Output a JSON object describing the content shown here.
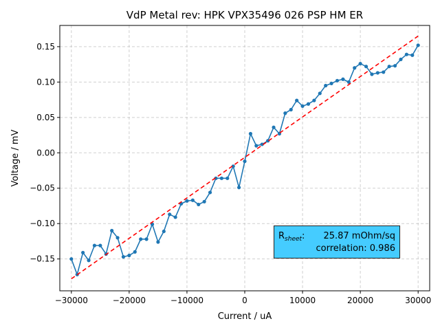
{
  "chart_data": {
    "type": "line",
    "title": "VdP Metal rev: HPK VPX35496 026 PSP HM ER",
    "xlabel": "Current / uA",
    "ylabel": "Voltage / mV",
    "xlim": [
      -32000,
      32000
    ],
    "ylim": [
      -0.195,
      0.18
    ],
    "grid": true,
    "x_ticks": [
      -30000,
      -20000,
      -10000,
      0,
      10000,
      20000,
      30000
    ],
    "y_ticks": [
      -0.15,
      -0.1,
      -0.05,
      0.0,
      0.05,
      0.1,
      0.15
    ],
    "x_tick_labels": [
      "−30000",
      "−20000",
      "−10000",
      "0",
      "10000",
      "20000",
      "30000"
    ],
    "y_tick_labels": [
      "−0.15",
      "−0.10",
      "−0.05",
      "0.00",
      "0.05",
      "0.10",
      "0.15"
    ],
    "series": [
      {
        "color": "#1f77b4",
        "style": "solid-with-markers",
        "x": [
          -30000,
          -29000,
          -28000,
          -27000,
          -26000,
          -25000,
          -24000,
          -23000,
          -22000,
          -21000,
          -20000,
          -19000,
          -18000,
          -17000,
          -16000,
          -15000,
          -14000,
          -13000,
          -12000,
          -11000,
          -10000,
          -9000,
          -8000,
          -7000,
          -6000,
          -5000,
          -4000,
          -3000,
          -2000,
          -1000,
          0,
          1000,
          2000,
          3000,
          4000,
          5000,
          6000,
          7000,
          8000,
          9000,
          10000,
          11000,
          12000,
          13000,
          14000,
          15000,
          16000,
          17000,
          18000,
          19000,
          20000,
          21000,
          22000,
          23000,
          24000,
          25000,
          26000,
          27000,
          28000,
          29000,
          30000
        ],
        "y": [
          -0.15,
          -0.172,
          -0.141,
          -0.152,
          -0.131,
          -0.131,
          -0.143,
          -0.11,
          -0.12,
          -0.147,
          -0.145,
          -0.14,
          -0.122,
          -0.122,
          -0.101,
          -0.126,
          -0.111,
          -0.087,
          -0.091,
          -0.072,
          -0.068,
          -0.067,
          -0.073,
          -0.069,
          -0.056,
          -0.036,
          -0.036,
          -0.036,
          -0.019,
          -0.049,
          -0.012,
          0.027,
          0.01,
          0.012,
          0.017,
          0.036,
          0.027,
          0.056,
          0.061,
          0.074,
          0.066,
          0.069,
          0.074,
          0.084,
          0.095,
          0.098,
          0.102,
          0.104,
          0.1,
          0.12,
          0.126,
          0.122,
          0.111,
          0.113,
          0.114,
          0.122,
          0.123,
          0.132,
          0.139,
          0.138,
          0.152
        ]
      },
      {
        "color": "#ff0000",
        "style": "dashed",
        "x": [
          -30000,
          30000
        ],
        "y": [
          -0.178,
          0.165
        ]
      }
    ],
    "annotation": {
      "rsheet_label": "R",
      "rsheet_sub": "sheet",
      "rsheet_suffix": ":",
      "rsheet_value": "25.87 mOhm/sq",
      "correlation": "correlation: 0.986",
      "background": "#45ccff"
    }
  }
}
